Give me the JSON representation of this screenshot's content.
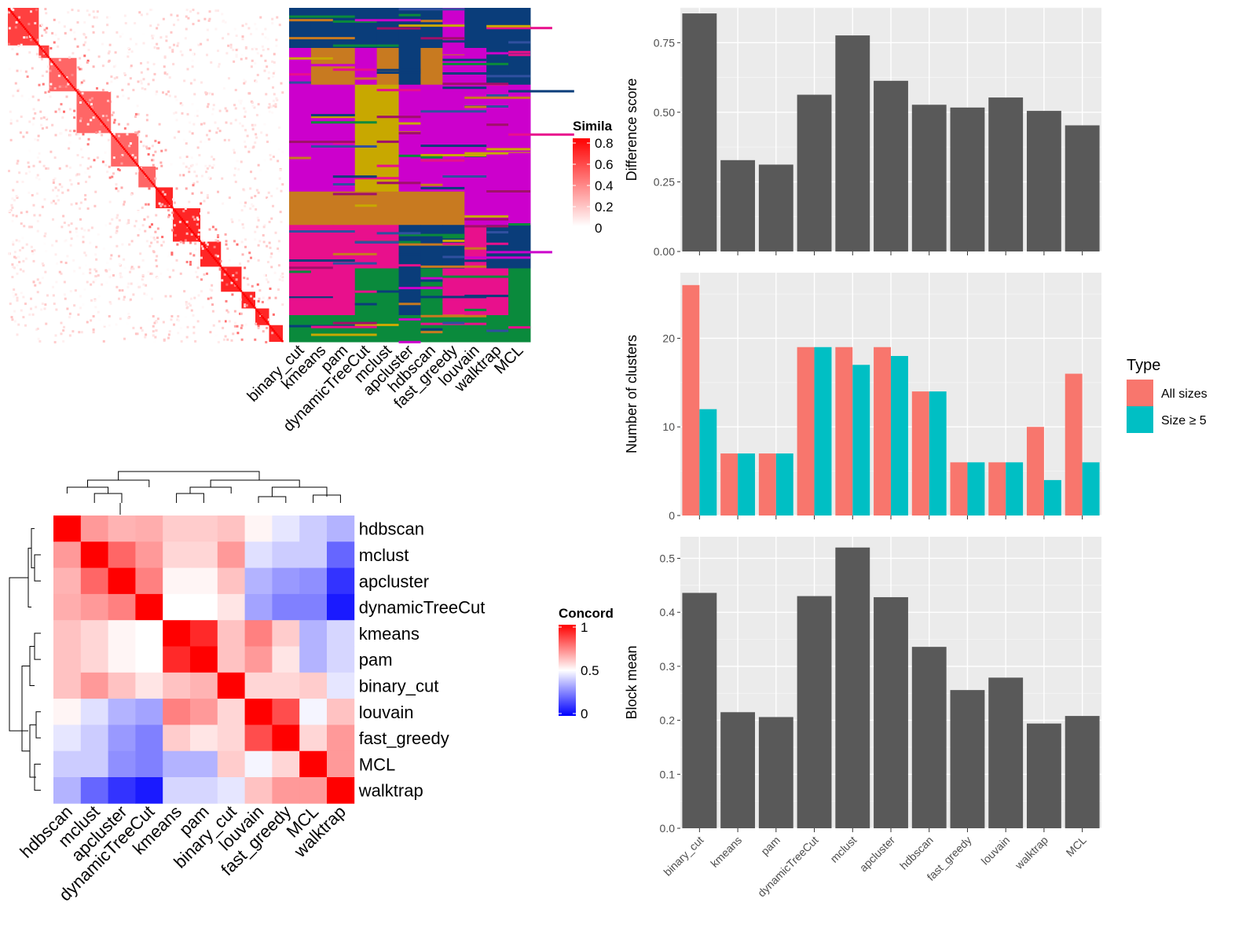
{
  "colors": {
    "panel_bg": "#ebebeb",
    "grid": "#ffffff",
    "bar": "#595959",
    "all_sizes": "#f8766d",
    "size_ge_5": "#00bfc4",
    "sim_high": "#ff0000",
    "sim_low": "#ffffff",
    "conc_high": "#ff0000",
    "conc_mid": "#ffffff",
    "conc_low": "#0000ff"
  },
  "similarity_legend": {
    "title": "Simila",
    "ticks": [
      "0.8",
      "0.6",
      "0.4",
      "0.2",
      "0"
    ]
  },
  "concordance_legend": {
    "title": "Concord",
    "ticks": [
      "1",
      "0.5",
      "0"
    ]
  },
  "type_legend": {
    "title": "Type",
    "items": [
      "All sizes",
      "Size ≥ 5"
    ]
  },
  "chart_data": [
    {
      "type": "heatmap",
      "id": "similarity_matrix",
      "legend_title": "Simila",
      "color_range": [
        0,
        0.8
      ]
    },
    {
      "type": "heatmap",
      "id": "cluster_assignments",
      "columns": [
        "binary_cut",
        "kmeans",
        "pam",
        "dynamicTreeCut",
        "mclust",
        "apcluster",
        "hdbscan",
        "fast_greedy",
        "louvain",
        "walktrap",
        "MCL"
      ]
    },
    {
      "type": "heatmap",
      "id": "concordance",
      "legend_title": "Concord",
      "color_range": [
        0,
        1
      ],
      "rows": [
        "hdbscan",
        "mclust",
        "apcluster",
        "dynamicTreeCut",
        "kmeans",
        "pam",
        "binary_cut",
        "louvain",
        "fast_greedy",
        "MCL",
        "walktrap"
      ],
      "columns": [
        "hdbscan",
        "mclust",
        "apcluster",
        "dynamicTreeCut",
        "kmeans",
        "pam",
        "binary_cut",
        "louvain",
        "fast_greedy",
        "MCL",
        "walktrap"
      ],
      "values": [
        [
          1.0,
          0.7,
          0.65,
          0.66,
          0.6,
          0.6,
          0.62,
          0.52,
          0.45,
          0.4,
          0.35
        ],
        [
          0.7,
          1.0,
          0.8,
          0.7,
          0.58,
          0.58,
          0.7,
          0.44,
          0.4,
          0.4,
          0.2
        ],
        [
          0.65,
          0.8,
          1.0,
          0.75,
          0.52,
          0.52,
          0.62,
          0.35,
          0.3,
          0.28,
          0.1
        ],
        [
          0.66,
          0.7,
          0.75,
          1.0,
          0.5,
          0.5,
          0.55,
          0.32,
          0.25,
          0.25,
          0.05
        ],
        [
          0.62,
          0.58,
          0.52,
          0.5,
          1.0,
          0.92,
          0.62,
          0.75,
          0.6,
          0.35,
          0.42
        ],
        [
          0.62,
          0.58,
          0.52,
          0.5,
          0.92,
          1.0,
          0.62,
          0.7,
          0.55,
          0.35,
          0.42
        ],
        [
          0.62,
          0.7,
          0.62,
          0.55,
          0.62,
          0.65,
          1.0,
          0.58,
          0.58,
          0.6,
          0.45
        ],
        [
          0.52,
          0.44,
          0.35,
          0.32,
          0.75,
          0.7,
          0.58,
          1.0,
          0.85,
          0.48,
          0.62
        ],
        [
          0.45,
          0.4,
          0.3,
          0.25,
          0.6,
          0.55,
          0.58,
          0.85,
          1.0,
          0.58,
          0.7
        ],
        [
          0.4,
          0.4,
          0.28,
          0.25,
          0.35,
          0.35,
          0.6,
          0.48,
          0.58,
          1.0,
          0.7
        ],
        [
          0.35,
          0.2,
          0.1,
          0.05,
          0.42,
          0.42,
          0.45,
          0.62,
          0.7,
          0.7,
          1.0
        ]
      ]
    },
    {
      "type": "bar",
      "id": "difference_score",
      "categories": [
        "binary_cut",
        "kmeans",
        "pam",
        "dynamicTreeCut",
        "mclust",
        "apcluster",
        "hdbscan",
        "fast_greedy",
        "louvain",
        "walktrap",
        "MCL"
      ],
      "values": [
        0.855,
        0.328,
        0.312,
        0.563,
        0.776,
        0.613,
        0.527,
        0.517,
        0.553,
        0.505,
        0.453
      ],
      "ylabel": "Difference score",
      "ylim": [
        0,
        0.875
      ],
      "yticks": [
        0.0,
        0.25,
        0.5,
        0.75
      ],
      "ytick_labels": [
        "0.00",
        "0.25",
        "0.50",
        "0.75"
      ]
    },
    {
      "type": "bar",
      "id": "number_of_clusters",
      "categories": [
        "binary_cut",
        "kmeans",
        "pam",
        "dynamicTreeCut",
        "mclust",
        "apcluster",
        "hdbscan",
        "fast_greedy",
        "louvain",
        "walktrap",
        "MCL"
      ],
      "series": [
        {
          "name": "All sizes",
          "values": [
            26,
            7,
            7,
            19,
            19,
            19,
            14,
            6,
            6,
            10,
            16
          ]
        },
        {
          "name": "Size ≥ 5",
          "values": [
            12,
            7,
            7,
            19,
            17,
            18,
            14,
            6,
            6,
            4,
            6
          ]
        }
      ],
      "ylabel": "Number of clusters",
      "ylim": [
        0,
        27.4
      ],
      "yticks": [
        0,
        10,
        20
      ],
      "ytick_labels": [
        "0",
        "10",
        "20"
      ],
      "legend": "right"
    },
    {
      "type": "bar",
      "id": "block_mean",
      "categories": [
        "binary_cut",
        "kmeans",
        "pam",
        "dynamicTreeCut",
        "mclust",
        "apcluster",
        "hdbscan",
        "fast_greedy",
        "louvain",
        "walktrap",
        "MCL"
      ],
      "values": [
        0.436,
        0.215,
        0.206,
        0.43,
        0.52,
        0.428,
        0.336,
        0.256,
        0.279,
        0.194,
        0.208
      ],
      "ylabel": "Block mean",
      "ylim": [
        0,
        0.54
      ],
      "yticks": [
        0.0,
        0.1,
        0.2,
        0.3,
        0.4,
        0.5
      ],
      "ytick_labels": [
        "0.0",
        "0.1",
        "0.2",
        "0.3",
        "0.4",
        "0.5"
      ]
    }
  ]
}
